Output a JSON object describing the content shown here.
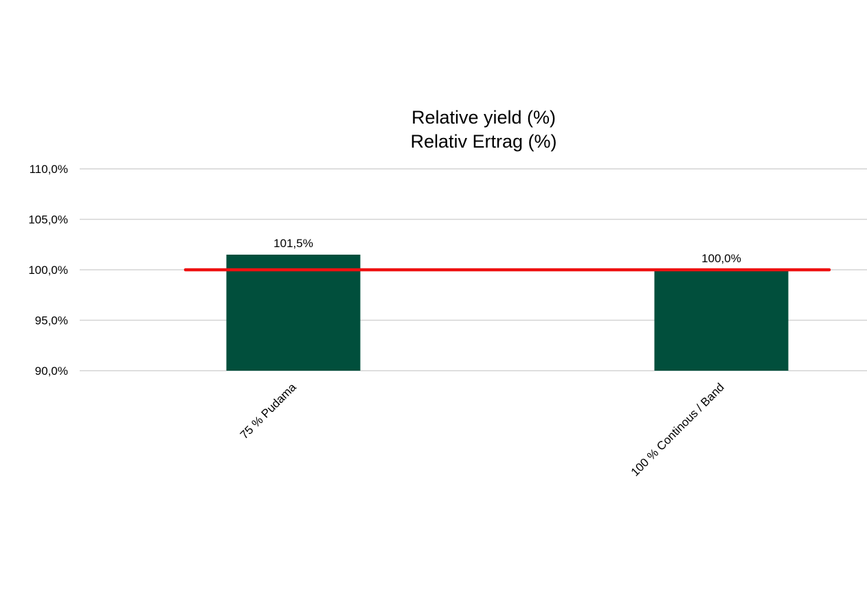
{
  "chart_data": {
    "type": "bar",
    "title_lines": [
      "Relative yield (%)",
      "Relativ Ertrag (%)"
    ],
    "xlabel": "",
    "ylabel": "",
    "categories": [
      "75 % Pudama",
      "100 % Continous / Band"
    ],
    "values": [
      101.5,
      100.0
    ],
    "data_labels": [
      "101,5%",
      "100,0%"
    ],
    "ylim": [
      90,
      110
    ],
    "yticks": [
      90,
      95,
      100,
      105,
      110
    ],
    "ytick_labels": [
      "90,0%",
      "95,0%",
      "100,0%",
      "105,0%",
      "110,0%"
    ],
    "reference_line": 100.0,
    "grid": true,
    "legend": "none",
    "colors": {
      "bar": "#014f3c",
      "reference_line": "#ee1111",
      "grid": "#d4d4d4"
    }
  }
}
